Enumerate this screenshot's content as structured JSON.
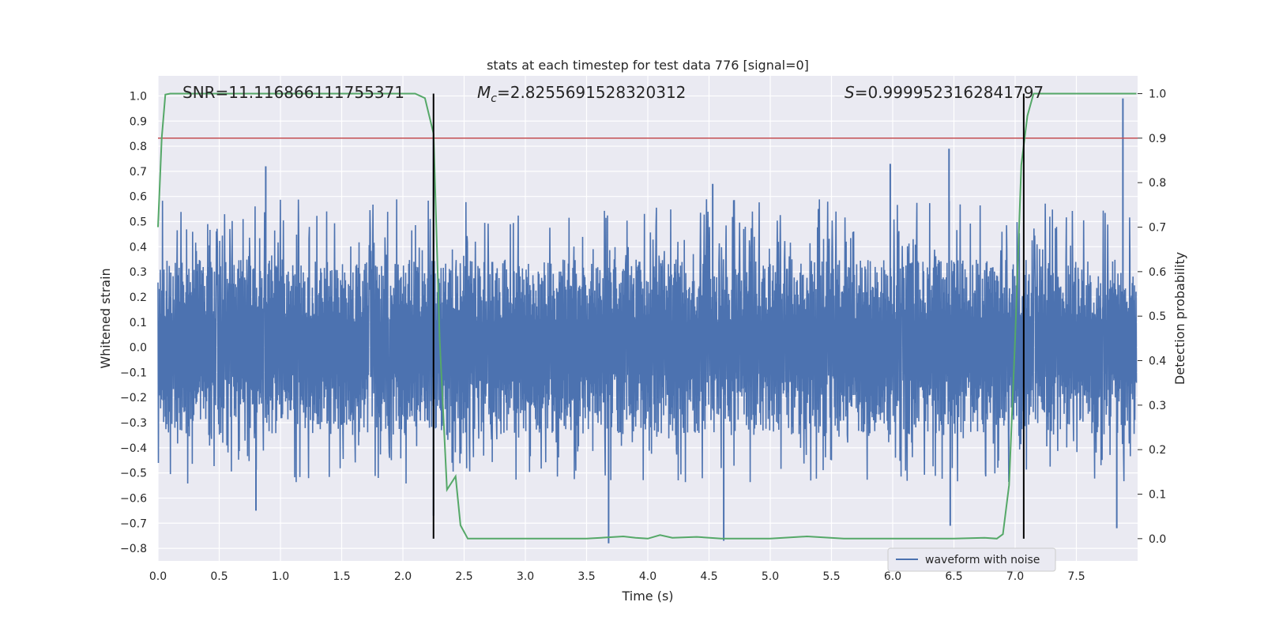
{
  "chart_data": {
    "type": "line",
    "title": "stats at each timestep for test data 776 [signal=0]",
    "xlabel": "Time (s)",
    "ylabel": "Whitened strain",
    "y2label": "Detection probability",
    "xlim": [
      0.0,
      8.0
    ],
    "ylim": [
      -0.85,
      1.08
    ],
    "y2lim": [
      -0.05,
      1.04
    ],
    "x_ticks": [
      0.0,
      0.5,
      1.0,
      1.5,
      2.0,
      2.5,
      3.0,
      3.5,
      4.0,
      4.5,
      5.0,
      5.5,
      6.0,
      6.5,
      7.0,
      7.5
    ],
    "x_tick_labels": [
      "0.0",
      "0.5",
      "1.0",
      "1.5",
      "2.0",
      "2.5",
      "3.0",
      "3.5",
      "4.0",
      "4.5",
      "5.0",
      "5.5",
      "6.0",
      "6.5",
      "7.0",
      "7.5"
    ],
    "y_ticks": [
      1.0,
      0.9,
      0.8,
      0.7,
      0.6,
      0.5,
      0.4,
      0.3,
      0.2,
      0.1,
      0.0,
      -0.1,
      -0.2,
      -0.3,
      -0.4,
      -0.5,
      -0.6,
      -0.7,
      -0.8
    ],
    "y_tick_labels": [
      "1.0",
      "0.9",
      "0.8",
      "0.7",
      "0.6",
      "0.5",
      "0.4",
      "0.3",
      "0.2",
      "0.1",
      "0.0",
      "−0.1",
      "−0.2",
      "−0.3",
      "−0.4",
      "−0.5",
      "−0.6",
      "−0.7",
      "−0.8"
    ],
    "y2_ticks": [
      1.0,
      0.9,
      0.8,
      0.7,
      0.6,
      0.5,
      0.4,
      0.3,
      0.2,
      0.1,
      0.0
    ],
    "y2_tick_labels": [
      "1.0",
      "0.9",
      "0.8",
      "0.7",
      "0.6",
      "0.5",
      "0.4",
      "0.3",
      "0.2",
      "0.1",
      "0.0"
    ],
    "grid": true,
    "legend": {
      "entries": [
        "waveform with noise"
      ],
      "placement": "lower-center-right"
    },
    "annotations": {
      "snr_text": "SNR=11.116866111755371",
      "mc_symbol": "M",
      "mc_subscript": "c",
      "mc_value": "=2.8255691528320312",
      "s_symbol": "S",
      "s_value": "=0.9999523162841797"
    },
    "series": [
      {
        "name": "waveform with noise",
        "axis": "left",
        "kind": "noise",
        "x_range": [
          0.0,
          7.99
        ],
        "envelope_typical": [
          -0.35,
          0.38
        ],
        "notable_peaks": [
          {
            "x": 0.88,
            "y": 0.72
          },
          {
            "x": 2.25,
            "y": 0.84
          },
          {
            "x": 6.46,
            "y": 0.79
          },
          {
            "x": 5.98,
            "y": 0.73
          },
          {
            "x": 7.88,
            "y": 0.99
          },
          {
            "x": 4.53,
            "y": 0.65
          },
          {
            "x": 3.68,
            "y": -0.78
          },
          {
            "x": 4.62,
            "y": -0.77
          },
          {
            "x": 0.8,
            "y": -0.65
          },
          {
            "x": 7.83,
            "y": -0.72
          },
          {
            "x": 6.47,
            "y": -0.71
          },
          {
            "x": 2.25,
            "y": -0.67
          }
        ]
      },
      {
        "name": "",
        "axis": "right",
        "kind": "line",
        "x": [
          0.0,
          0.03,
          0.06,
          0.1,
          0.5,
          1.0,
          1.5,
          2.0,
          2.1,
          2.18,
          2.25,
          2.3,
          2.36,
          2.43,
          2.47,
          2.53,
          2.6,
          2.8,
          3.0,
          3.5,
          3.8,
          3.9,
          4.0,
          4.1,
          4.2,
          4.4,
          4.6,
          5.0,
          5.3,
          5.6,
          6.0,
          6.5,
          6.75,
          6.85,
          6.9,
          6.95,
          7.0,
          7.05,
          7.1,
          7.15,
          7.2,
          7.3,
          7.5,
          7.7,
          7.99
        ],
        "y": [
          0.7,
          0.9,
          0.998,
          1.0,
          1.0,
          1.0,
          1.0,
          1.0,
          1.0,
          0.99,
          0.91,
          0.45,
          0.11,
          0.14,
          0.03,
          0.0,
          0.0,
          0.0,
          0.0,
          0.0,
          0.005,
          0.002,
          0.0,
          0.008,
          0.002,
          0.004,
          0.0,
          0.0,
          0.005,
          0.0,
          0.0,
          0.0,
          0.002,
          0.0,
          0.01,
          0.12,
          0.45,
          0.84,
          0.95,
          1.0,
          1.0,
          1.0,
          1.0,
          1.0,
          1.0
        ],
        "color": "#55a868"
      }
    ],
    "threshold_line": {
      "axis": "right",
      "y": 0.9,
      "color": "#c44e52"
    },
    "vertical_lines": [
      {
        "x": 2.25
      },
      {
        "x": 7.07
      }
    ],
    "colors": {
      "waveform": "#4c72b0",
      "probability": "#55a868",
      "threshold": "#c44e52",
      "markers": "#000000",
      "plot_background": "#eaeaf2",
      "grid": "#ffffff"
    }
  }
}
